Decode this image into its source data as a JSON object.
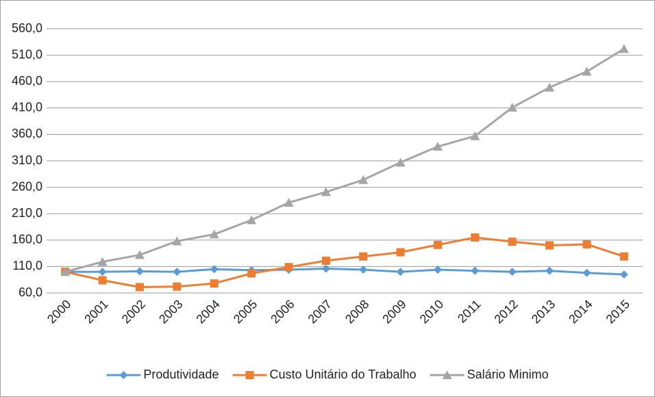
{
  "chart_data": {
    "type": "line",
    "categories": [
      "2000",
      "2001",
      "2002",
      "2003",
      "2004",
      "2005",
      "2006",
      "2007",
      "2008",
      "2009",
      "2010",
      "2011",
      "2012",
      "2013",
      "2014",
      "2015"
    ],
    "series": [
      {
        "name": "Produtividade",
        "color": "#5b9bd5",
        "marker": "diamond",
        "values": [
          100,
          100,
          101,
          100,
          105,
          103,
          104,
          106,
          104,
          100,
          104,
          102,
          100,
          102,
          98,
          95
        ]
      },
      {
        "name": "Custo Unitário do Trabalho",
        "color": "#ed7d31",
        "marker": "square",
        "values": [
          100,
          84,
          71,
          72,
          78,
          97,
          109,
          121,
          129,
          137,
          151,
          165,
          157,
          150,
          152,
          129
        ]
      },
      {
        "name": "Salário Minimo",
        "color": "#a5a5a5",
        "marker": "triangle",
        "values": [
          100,
          119,
          132,
          158,
          171,
          198,
          231,
          251,
          274,
          307,
          337,
          357,
          411,
          449,
          479,
          522
        ]
      }
    ],
    "ylim": [
      60,
      560
    ],
    "yticks": [
      {
        "value": 60,
        "label": "60,0"
      },
      {
        "value": 110,
        "label": "110,0"
      },
      {
        "value": 160,
        "label": "160,0"
      },
      {
        "value": 210,
        "label": "210,0"
      },
      {
        "value": 260,
        "label": "260,0"
      },
      {
        "value": 310,
        "label": "310,0"
      },
      {
        "value": 360,
        "label": "360,0"
      },
      {
        "value": 410,
        "label": "410,0"
      },
      {
        "value": 460,
        "label": "460,0"
      },
      {
        "value": 510,
        "label": "510,0"
      },
      {
        "value": 560,
        "label": "560,0"
      }
    ],
    "grid": true,
    "legend": "bottom"
  }
}
